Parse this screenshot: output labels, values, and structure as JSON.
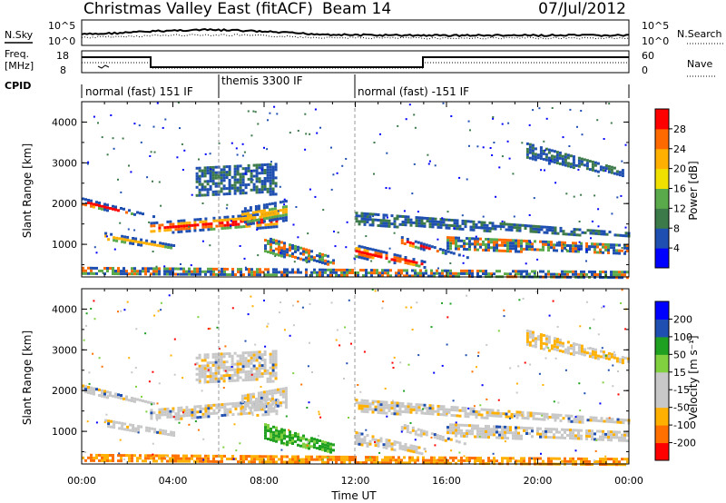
{
  "header": {
    "title": "Christmas Valley East (fitACF)",
    "beam": "Beam 14",
    "date": "07/Jul/2012"
  },
  "strip1": {
    "left_label": "N.Sky",
    "right_label": "N.Search",
    "left_ticks": [
      "10^5",
      "10^0"
    ],
    "right_ticks": [
      "10^5",
      "10^0"
    ]
  },
  "strip2": {
    "left_label_1": "Freq.",
    "left_label_2": "[MHz]",
    "right_label": "Nave",
    "left_ticks": [
      "18",
      "8"
    ],
    "right_ticks": [
      "60",
      "0"
    ]
  },
  "cpid": {
    "label": "CPID",
    "segments": [
      "normal (fast) 151 IF",
      "themis 3300 IF",
      "normal (fast) -151 IF"
    ]
  },
  "colors": {
    "power_scale": [
      "#0000ff",
      "#1f4fb0",
      "#3c7a4a",
      "#5aa94a",
      "#f0e000",
      "#ffb000",
      "#ff6a00",
      "#ff0000"
    ],
    "velocity_scale": [
      "#ff0000",
      "#ff7000",
      "#ffb000",
      "#c8c8c8",
      "#c8c8c8",
      "#80d040",
      "#20a020",
      "#1f4fb0",
      "#0000ff"
    ],
    "ground_scatter": "#c8c8c8"
  },
  "chart_data": [
    {
      "type": "heatmap",
      "panel": "power",
      "x": [
        "00:00",
        "04:00",
        "08:00",
        "12:00",
        "16:00",
        "20:00",
        "00:00"
      ],
      "ylabel": "Slant Range [km]",
      "yticks": [
        "1000",
        "2000",
        "3000",
        "4000"
      ],
      "ylim": [
        200,
        4500
      ],
      "colorbar_label": "Power [dB]",
      "colorbar_ticks": [
        "4",
        "8",
        "12",
        "16",
        "20",
        "24",
        "28"
      ],
      "clim": [
        0,
        30
      ]
    },
    {
      "type": "heatmap",
      "panel": "velocity",
      "x": [
        "00:00",
        "04:00",
        "08:00",
        "12:00",
        "16:00",
        "20:00",
        "00:00"
      ],
      "xlabel": "Time UT",
      "ylabel": "Slant Range [km]",
      "yticks": [
        "1000",
        "2000",
        "3000",
        "4000"
      ],
      "ylim": [
        200,
        4500
      ],
      "colorbar_label": "Velocity [m s⁻¹]",
      "colorbar_ticks": [
        "-200",
        "-100",
        "-50",
        "-15",
        "15",
        "50",
        "100",
        "200"
      ],
      "clim": [
        -250,
        250
      ]
    }
  ]
}
